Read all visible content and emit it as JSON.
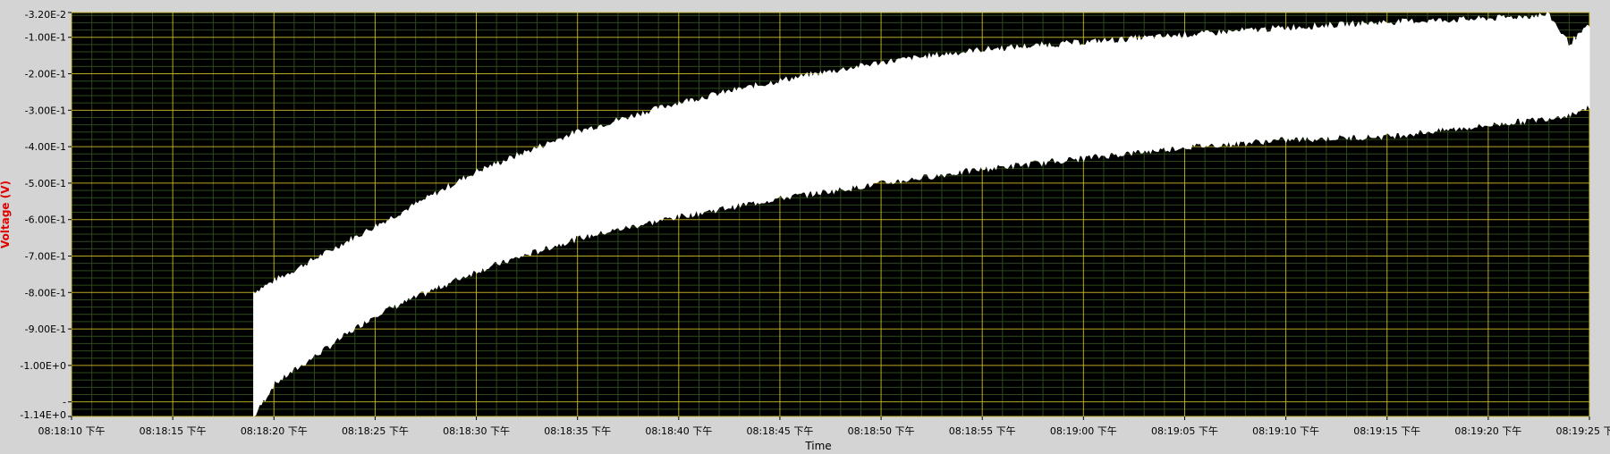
{
  "colors": {
    "background": "#d4d4d4",
    "plot_bg": "#000000",
    "major_grid": "#d6c52a",
    "minor_grid": "#2f4a1a",
    "trace": "#ffffff",
    "tick_text": "#000000",
    "ylabel": "#e00000"
  },
  "chart_data": {
    "type": "area",
    "ylabel": "Voltage (V)",
    "xlabel": "Time",
    "grid": true,
    "x_range": [
      "08:18:10",
      "08:19:25"
    ],
    "ylim": [
      -1.14,
      -0.032
    ],
    "x_tick_labels": [
      "08:18:10 下午",
      "08:18:15 下午",
      "08:18:20 下午",
      "08:18:25 下午",
      "08:18:30 下午",
      "08:18:35 下午",
      "08:18:40 下午",
      "08:18:45 下午",
      "08:18:50 下午",
      "08:18:55 下午",
      "08:19:00 下午",
      "08:19:05 下午",
      "08:19:10 下午",
      "08:19:15 下午",
      "08:19:20 下午",
      "08:19:25 下午"
    ],
    "y_tick_labels": [
      "-3.20E-2",
      "-1.00E-1",
      "-2.00E-1",
      "-3.00E-1",
      "-4.00E-1",
      "-5.00E-1",
      "-6.00E-1",
      "-7.00E-1",
      "-8.00E-1",
      "-9.00E-1",
      "-1.00E+0",
      "-",
      "-1.14E+0"
    ],
    "y_tick_values": [
      -0.032,
      -0.1,
      -0.2,
      -0.3,
      -0.4,
      -0.5,
      -0.6,
      -0.7,
      -0.8,
      -0.9,
      -1.0,
      -1.1,
      -1.14
    ],
    "series": [
      {
        "x": [
          "08:18:19",
          "08:18:20",
          "08:18:25",
          "08:18:30",
          "08:18:35",
          "08:18:40",
          "08:18:45",
          "08:18:50",
          "08:18:55",
          "08:19:00",
          "08:19:05",
          "08:19:10",
          "08:19:15",
          "08:19:20",
          "08:19:23",
          "08:19:24",
          "08:19:25"
        ],
        "upper": [
          -0.8,
          -0.77,
          -0.62,
          -0.47,
          -0.36,
          -0.28,
          -0.22,
          -0.17,
          -0.135,
          -0.115,
          -0.095,
          -0.075,
          -0.06,
          -0.05,
          -0.04,
          -0.12,
          -0.07
        ],
        "lower": [
          -1.14,
          -1.05,
          -0.86,
          -0.74,
          -0.65,
          -0.59,
          -0.54,
          -0.5,
          -0.46,
          -0.43,
          -0.4,
          -0.38,
          -0.37,
          -0.34,
          -0.32,
          -0.31,
          -0.29
        ]
      }
    ]
  }
}
